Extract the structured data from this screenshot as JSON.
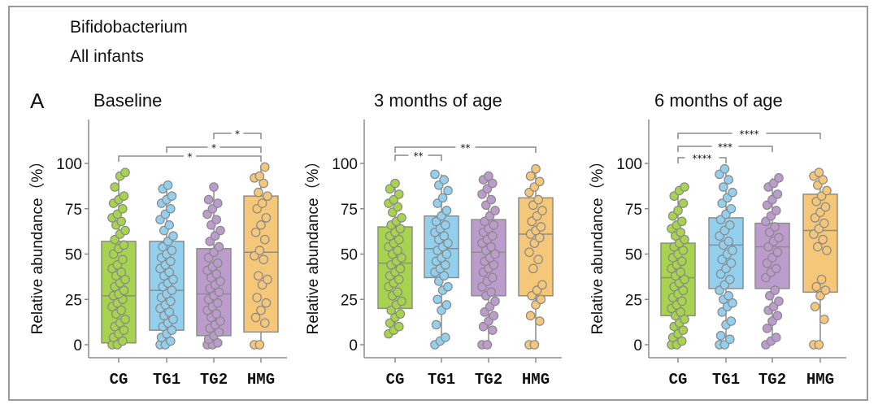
{
  "header": {
    "line1": "Bifidobacterium",
    "line2": "All infants",
    "panel_letter": "A"
  },
  "chart_data": [
    {
      "type": "box",
      "title": "Baseline",
      "xlabel": "",
      "ylabel": "Relative abundance（%）",
      "ylim": [
        0,
        120
      ],
      "yticks": [
        0,
        25,
        50,
        75,
        100
      ],
      "categories": [
        "CG",
        "TG1",
        "TG2",
        "HMG"
      ],
      "colors": [
        "#a8d34f",
        "#93d0ee",
        "#bb9ccd",
        "#f5c778"
      ],
      "boxes": [
        {
          "q1": 1,
          "median": 27,
          "q3": 57,
          "min": 0,
          "max": 95
        },
        {
          "q1": 8,
          "median": 30,
          "q3": 57,
          "min": 0,
          "max": 88
        },
        {
          "q1": 5,
          "median": 28,
          "q3": 53,
          "min": 0,
          "max": 87
        },
        {
          "q1": 7,
          "median": 51,
          "q3": 82,
          "min": 0,
          "max": 98
        }
      ],
      "points": [
        [
          0,
          0,
          2,
          4,
          6,
          8,
          10,
          12,
          14,
          17,
          19,
          21,
          23,
          25,
          27,
          28,
          30,
          32,
          34,
          36,
          38,
          40,
          42,
          44,
          47,
          50,
          53,
          55,
          58,
          61,
          63,
          66,
          68,
          70,
          72,
          75,
          78,
          80,
          82,
          87,
          93,
          95
        ],
        [
          0,
          0,
          2,
          4,
          6,
          8,
          10,
          12,
          14,
          16,
          18,
          20,
          22,
          24,
          26,
          28,
          30,
          32,
          34,
          36,
          38,
          40,
          42,
          44,
          46,
          48,
          50,
          52,
          54,
          57,
          60,
          63,
          66,
          69,
          72,
          75,
          78,
          80,
          82,
          86,
          88
        ],
        [
          0,
          0,
          1,
          3,
          5,
          7,
          9,
          11,
          13,
          15,
          17,
          19,
          21,
          23,
          25,
          27,
          29,
          31,
          33,
          35,
          37,
          39,
          41,
          43,
          45,
          48,
          51,
          54,
          57,
          60,
          63,
          66,
          69,
          72,
          75,
          78,
          80,
          87
        ],
        [
          0,
          0,
          12,
          15,
          19,
          23,
          26,
          33,
          36,
          38,
          47,
          49,
          52,
          58,
          62,
          66,
          70,
          75,
          78,
          82,
          84,
          89,
          92,
          93,
          98
        ]
      ],
      "comparisons": [
        {
          "from": "TG2",
          "to": "HMG",
          "label": "*"
        },
        {
          "from": "TG1",
          "to": "HMG",
          "label": "*"
        },
        {
          "from": "CG",
          "to": "HMG",
          "label": "*"
        }
      ]
    },
    {
      "type": "box",
      "title": "3 months of age",
      "xlabel": "",
      "ylabel": "Relative abundance（%）",
      "ylim": [
        0,
        120
      ],
      "yticks": [
        0,
        25,
        50,
        75,
        100
      ],
      "categories": [
        "CG",
        "TG1",
        "TG2",
        "HMG"
      ],
      "colors": [
        "#a8d34f",
        "#93d0ee",
        "#bb9ccd",
        "#f5c778"
      ],
      "boxes": [
        {
          "q1": 20,
          "median": 45,
          "q3": 65,
          "min": 6,
          "max": 89
        },
        {
          "q1": 37,
          "median": 53,
          "q3": 71,
          "min": 0,
          "max": 94
        },
        {
          "q1": 27,
          "median": 51,
          "q3": 69,
          "min": 0,
          "max": 93
        },
        {
          "q1": 27,
          "median": 61,
          "q3": 81,
          "min": 0,
          "max": 97
        }
      ],
      "points": [
        [
          6,
          8,
          10,
          12,
          15,
          17,
          19,
          22,
          24,
          27,
          29,
          32,
          34,
          36,
          38,
          40,
          42,
          44,
          46,
          48,
          50,
          52,
          54,
          56,
          58,
          60,
          62,
          64,
          66,
          68,
          70,
          73,
          76,
          78,
          80,
          83,
          86,
          89
        ],
        [
          0,
          2,
          4,
          11,
          19,
          22,
          25,
          30,
          32,
          35,
          38,
          40,
          42,
          44,
          46,
          48,
          50,
          52,
          54,
          56,
          58,
          60,
          62,
          64,
          66,
          68,
          71,
          74,
          78,
          81,
          85,
          88,
          91,
          94
        ],
        [
          0,
          0,
          8,
          10,
          13,
          16,
          18,
          21,
          24,
          27,
          29,
          32,
          35,
          37,
          40,
          42,
          44,
          46,
          48,
          50,
          52,
          54,
          56,
          58,
          60,
          62,
          64,
          66,
          68,
          71,
          74,
          77,
          80,
          83,
          86,
          89,
          91,
          93
        ],
        [
          0,
          0,
          13,
          16,
          22,
          25,
          27,
          30,
          33,
          42,
          47,
          51,
          56,
          59,
          61,
          63,
          65,
          68,
          71,
          74,
          77,
          80,
          84,
          87,
          90,
          93,
          97
        ]
      ],
      "comparisons": [
        {
          "from": "CG",
          "to": "TG1",
          "label": "**"
        },
        {
          "from": "CG",
          "to": "HMG",
          "label": "**"
        }
      ]
    },
    {
      "type": "box",
      "title": "6 months of age",
      "xlabel": "",
      "ylabel": "Relative abundance（%）",
      "ylim": [
        0,
        120
      ],
      "yticks": [
        0,
        25,
        50,
        75,
        100
      ],
      "categories": [
        "CG",
        "TG1",
        "TG2",
        "HMG"
      ],
      "colors": [
        "#a8d34f",
        "#93d0ee",
        "#bb9ccd",
        "#f5c778"
      ],
      "boxes": [
        {
          "q1": 16,
          "median": 37,
          "q3": 56,
          "min": 0,
          "max": 87
        },
        {
          "q1": 31,
          "median": 55,
          "q3": 70,
          "min": 0,
          "max": 97
        },
        {
          "q1": 31,
          "median": 54,
          "q3": 67,
          "min": 0,
          "max": 92
        },
        {
          "q1": 29,
          "median": 63,
          "q3": 83,
          "min": 0,
          "max": 95
        }
      ],
      "points": [
        [
          0,
          0,
          2,
          4,
          6,
          8,
          10,
          12,
          14,
          16,
          18,
          20,
          22,
          24,
          26,
          28,
          30,
          32,
          34,
          36,
          38,
          40,
          42,
          44,
          46,
          48,
          50,
          52,
          54,
          56,
          58,
          60,
          62,
          64,
          66,
          68,
          71,
          74,
          78,
          82,
          85,
          87
        ],
        [
          0,
          0,
          3,
          5,
          11,
          13,
          18,
          21,
          23,
          25,
          27,
          30,
          33,
          36,
          39,
          42,
          45,
          47,
          50,
          52,
          55,
          57,
          60,
          63,
          66,
          69,
          72,
          75,
          78,
          81,
          84,
          87,
          91,
          94,
          97
        ],
        [
          0,
          2,
          4,
          9,
          13,
          16,
          19,
          21,
          24,
          27,
          30,
          37,
          40,
          42,
          45,
          48,
          51,
          54,
          57,
          59,
          62,
          65,
          68,
          71,
          74,
          77,
          80,
          83,
          87,
          89,
          92
        ],
        [
          0,
          0,
          14,
          21,
          27,
          30,
          32,
          36,
          52,
          54,
          58,
          61,
          64,
          67,
          70,
          73,
          76,
          79,
          82,
          85,
          88,
          91,
          93,
          95
        ]
      ],
      "comparisons": [
        {
          "from": "CG",
          "to": "TG1",
          "label": "****"
        },
        {
          "from": "CG",
          "to": "TG2",
          "label": "***"
        },
        {
          "from": "CG",
          "to": "HMG",
          "label": "****"
        }
      ]
    }
  ]
}
